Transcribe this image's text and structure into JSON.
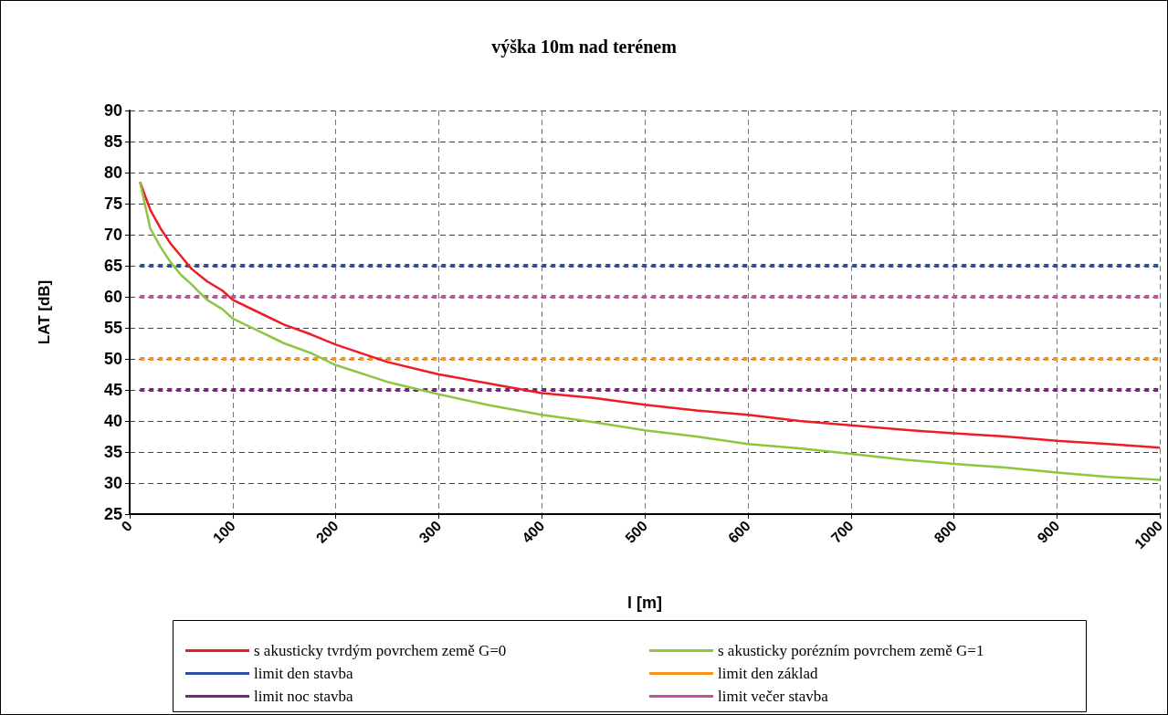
{
  "chart_data": {
    "type": "line",
    "title": "výška 10m nad terénem",
    "xlabel": "l [m]",
    "ylabel": "LAT [dB]",
    "xlim": [
      0,
      1000
    ],
    "xticks": [
      0,
      100,
      200,
      300,
      400,
      500,
      600,
      700,
      800,
      900,
      1000
    ],
    "ylim": [
      25,
      90
    ],
    "yticks": [
      25,
      30,
      35,
      40,
      45,
      50,
      55,
      60,
      65,
      70,
      75,
      80,
      85,
      90
    ],
    "grid": true,
    "legend": "bottom",
    "marker": "none",
    "series": [
      {
        "name": "s akusticky tvrdým povrchem země G=0",
        "color": "#ee1c25",
        "line_style": "solid",
        "x": [
          10,
          20,
          30,
          40,
          50,
          60,
          75,
          90,
          100,
          125,
          150,
          175,
          200,
          250,
          300,
          350,
          400,
          450,
          500,
          550,
          600,
          650,
          700,
          750,
          800,
          850,
          900,
          950,
          1000
        ],
        "values": [
          78.5,
          74,
          71,
          68.5,
          66.5,
          64.5,
          62.5,
          61,
          59.5,
          57.5,
          55.5,
          54,
          52.3,
          49.5,
          47.5,
          46,
          44.5,
          43.7,
          42.6,
          41.7,
          41,
          40,
          39.3,
          38.6,
          38,
          37.5,
          36.8,
          36.3,
          35.7
        ]
      },
      {
        "name": "s akusticky porézním povrchem země G=1",
        "color": "#8dc63f",
        "line_style": "solid",
        "x": [
          10,
          20,
          30,
          40,
          50,
          60,
          75,
          90,
          100,
          125,
          150,
          175,
          200,
          250,
          300,
          350,
          400,
          450,
          500,
          550,
          600,
          650,
          700,
          750,
          800,
          850,
          900,
          950,
          1000
        ],
        "values": [
          78.5,
          71,
          68,
          65.5,
          63.5,
          62,
          59.5,
          58,
          56.5,
          54.5,
          52.5,
          51,
          49,
          46.3,
          44.3,
          42.5,
          41,
          39.8,
          38.5,
          37.5,
          36.3,
          35.6,
          34.7,
          33.8,
          33.1,
          32.5,
          31.7,
          31,
          30.5
        ]
      },
      {
        "name": "limit den stavba",
        "color": "#2e4fa0",
        "line_style": "dashed",
        "x": [
          10,
          1000
        ],
        "values": [
          65,
          65
        ]
      },
      {
        "name": "limit den základ",
        "color": "#f7941d",
        "line_style": "dashed",
        "x": [
          10,
          1000
        ],
        "values": [
          50,
          50
        ]
      },
      {
        "name": "limit noc stavba",
        "color": "#7b2481",
        "line_style": "dashed",
        "x": [
          10,
          1000
        ],
        "values": [
          45,
          45
        ]
      },
      {
        "name": "limit večer stavba",
        "color": "#c052a0",
        "line_style": "dashed",
        "x": [
          10,
          1000
        ],
        "values": [
          60,
          60
        ]
      }
    ]
  }
}
